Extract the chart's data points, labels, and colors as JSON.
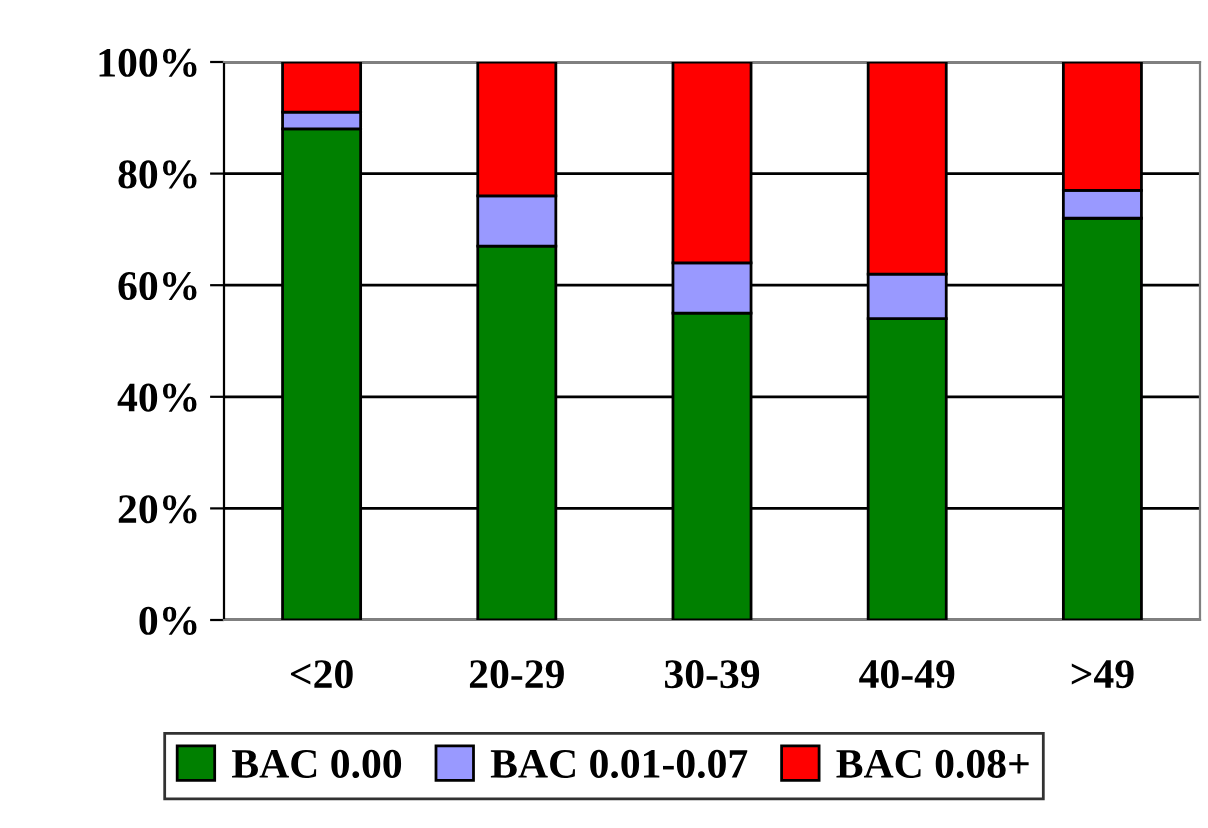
{
  "chart_data": {
    "type": "bar",
    "stacked": true,
    "categories": [
      "<20",
      "20-29",
      "30-39",
      "40-49",
      ">49"
    ],
    "series": [
      {
        "name": "BAC 0.00",
        "color": "#008000",
        "values": [
          88,
          67,
          55,
          54,
          72
        ]
      },
      {
        "name": "BAC 0.01-0.07",
        "color": "#9999ff",
        "values": [
          3,
          9,
          9,
          8,
          5
        ]
      },
      {
        "name": "BAC 0.08+",
        "color": "#ff0000",
        "values": [
          9,
          24,
          36,
          38,
          23
        ]
      }
    ],
    "ylim": [
      0,
      100
    ],
    "yticks": [
      {
        "value": 0,
        "label": "0%"
      },
      {
        "value": 20,
        "label": "20%"
      },
      {
        "value": 40,
        "label": "40%"
      },
      {
        "value": 60,
        "label": "60%"
      },
      {
        "value": 80,
        "label": "80%"
      },
      {
        "value": 100,
        "label": "100%"
      }
    ],
    "grid": "y",
    "legend": "bottom"
  }
}
